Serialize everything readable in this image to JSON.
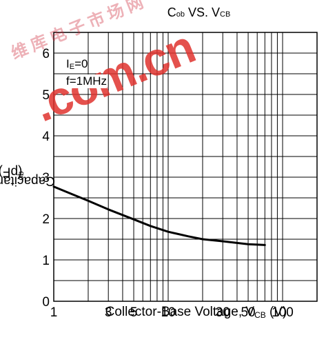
{
  "chart_data": {
    "type": "line",
    "title": {
      "main": "C",
      "sub": "ob",
      "rest": " VS. V",
      "sub2": "CB"
    },
    "xlabel": {
      "main": "Collector-Base Voltage, V",
      "sub": "CB",
      "unit": " (V)"
    },
    "ylabel": {
      "main": "Capacitance, C",
      "sub": "ob",
      "unit": " (pF)"
    },
    "x_scale": "log",
    "xlim": [
      1,
      200
    ],
    "ylim": [
      0,
      6.5
    ],
    "x_ticks": [
      1,
      3,
      5,
      10,
      30,
      50,
      100
    ],
    "y_ticks": [
      0,
      1,
      2,
      3,
      4,
      5,
      6
    ],
    "grid": true,
    "series": [
      {
        "x": [
          1,
          1.5,
          2,
          3,
          5,
          7,
          10,
          15,
          20,
          30,
          50,
          70
        ],
        "y": [
          2.77,
          2.57,
          2.43,
          2.22,
          1.98,
          1.82,
          1.68,
          1.57,
          1.5,
          1.45,
          1.38,
          1.36
        ]
      }
    ],
    "annotations": [
      {
        "main": "I",
        "sub": "E",
        "rest": "=0"
      },
      {
        "main": "f=1MHz"
      }
    ]
  },
  "watermark": {
    "text": ".com.cn",
    "text2": "维库电子市场网"
  }
}
